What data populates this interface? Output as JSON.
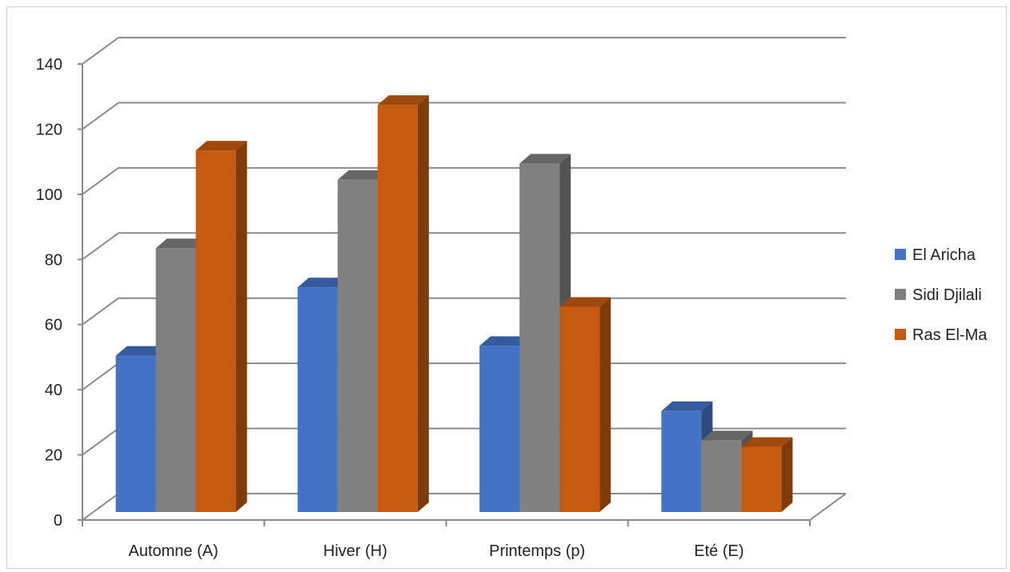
{
  "chart_data": {
    "type": "bar",
    "style": "3d-clustered-column",
    "categories": [
      "Automne (A)",
      "Hiver (H)",
      "Printemps (p)",
      "Eté (E)"
    ],
    "series": [
      {
        "name": "El Aricha",
        "color": "#4472C4",
        "values": [
          48,
          69,
          51,
          31
        ]
      },
      {
        "name": "Sidi Djilali",
        "color": "#808080",
        "values": [
          81,
          102,
          107,
          22
        ]
      },
      {
        "name": "Ras El-Ma",
        "color": "#C55A11",
        "values": [
          111,
          125,
          63,
          20
        ]
      }
    ],
    "yticks": [
      "0",
      "20",
      "40",
      "60",
      "80",
      "100",
      "120",
      "140"
    ],
    "ylim": [
      0,
      140
    ],
    "grid": true,
    "legend_position": "right"
  }
}
